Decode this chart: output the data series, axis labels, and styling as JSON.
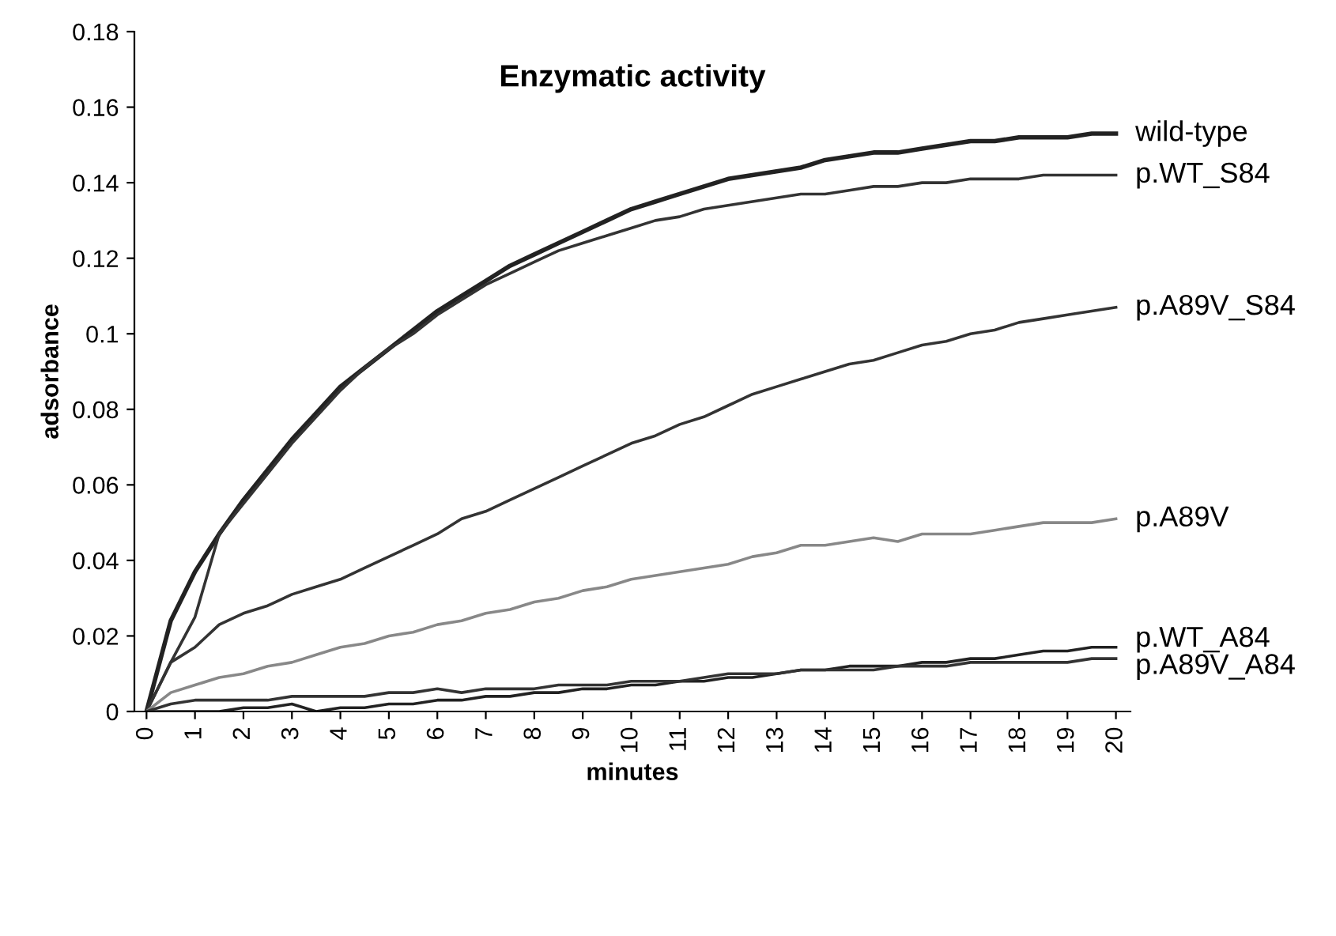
{
  "chart_data": {
    "type": "line",
    "title": "Enzymatic activity",
    "xlabel": "minutes",
    "ylabel": "adsorbance",
    "x": [
      0,
      0.5,
      1,
      1.5,
      2,
      2.5,
      3,
      3.5,
      4,
      4.5,
      5,
      5.5,
      6,
      6.5,
      7,
      7.5,
      8,
      8.5,
      9,
      9.5,
      10,
      10.5,
      11,
      11.5,
      12,
      12.5,
      13,
      13.5,
      14,
      14.5,
      15,
      15.5,
      16,
      16.5,
      17,
      17.5,
      18,
      18.5,
      19,
      19.5,
      20
    ],
    "series": [
      {
        "name": "wild-type",
        "color": "#222222",
        "values": [
          0,
          0.024,
          0.037,
          0.047,
          0.056,
          0.064,
          0.072,
          0.079,
          0.086,
          0.091,
          0.096,
          0.101,
          0.106,
          0.11,
          0.114,
          0.118,
          0.121,
          0.124,
          0.127,
          0.13,
          0.133,
          0.135,
          0.137,
          0.139,
          0.141,
          0.142,
          0.143,
          0.144,
          0.146,
          0.147,
          0.148,
          0.148,
          0.149,
          0.15,
          0.151,
          0.151,
          0.152,
          0.152,
          0.152,
          0.153,
          0.153
        ]
      },
      {
        "name": "p.WT_S84",
        "color": "#333333",
        "values": [
          0,
          0.013,
          0.025,
          0.047,
          0.055,
          0.063,
          0.071,
          0.078,
          0.085,
          0.091,
          0.096,
          0.1,
          0.105,
          0.109,
          0.113,
          0.116,
          0.119,
          0.122,
          0.124,
          0.126,
          0.128,
          0.13,
          0.131,
          0.133,
          0.134,
          0.135,
          0.136,
          0.137,
          0.137,
          0.138,
          0.139,
          0.139,
          0.14,
          0.14,
          0.141,
          0.141,
          0.141,
          0.142,
          0.142,
          0.142,
          0.142
        ]
      },
      {
        "name": "p.A89V_S84",
        "color": "#333333",
        "values": [
          0,
          0.013,
          0.017,
          0.023,
          0.026,
          0.028,
          0.031,
          0.033,
          0.035,
          0.038,
          0.041,
          0.044,
          0.047,
          0.051,
          0.053,
          0.056,
          0.059,
          0.062,
          0.065,
          0.068,
          0.071,
          0.073,
          0.076,
          0.078,
          0.081,
          0.084,
          0.086,
          0.088,
          0.09,
          0.092,
          0.093,
          0.095,
          0.097,
          0.098,
          0.1,
          0.101,
          0.103,
          0.104,
          0.105,
          0.106,
          0.107
        ]
      },
      {
        "name": "p.A89V",
        "color": "#888888",
        "values": [
          0,
          0.005,
          0.007,
          0.009,
          0.01,
          0.012,
          0.013,
          0.015,
          0.017,
          0.018,
          0.02,
          0.021,
          0.023,
          0.024,
          0.026,
          0.027,
          0.029,
          0.03,
          0.032,
          0.033,
          0.035,
          0.036,
          0.037,
          0.038,
          0.039,
          0.041,
          0.042,
          0.044,
          0.044,
          0.045,
          0.046,
          0.045,
          0.047,
          0.047,
          0.047,
          0.048,
          0.049,
          0.05,
          0.05,
          0.05,
          0.051
        ]
      },
      {
        "name": "p.WT_A84",
        "color": "#222222",
        "values": [
          0,
          0,
          0,
          0,
          0.001,
          0.001,
          0.002,
          0,
          0.001,
          0.001,
          0.002,
          0.002,
          0.003,
          0.003,
          0.004,
          0.004,
          0.005,
          0.005,
          0.006,
          0.006,
          0.007,
          0.007,
          0.008,
          0.008,
          0.009,
          0.009,
          0.01,
          0.011,
          0.011,
          0.012,
          0.012,
          0.012,
          0.013,
          0.013,
          0.014,
          0.014,
          0.015,
          0.016,
          0.016,
          0.017,
          0.017
        ]
      },
      {
        "name": "p.A89V_A84",
        "color": "#333333",
        "values": [
          0,
          0.002,
          0.003,
          0.003,
          0.003,
          0.003,
          0.004,
          0.004,
          0.004,
          0.004,
          0.005,
          0.005,
          0.006,
          0.005,
          0.006,
          0.006,
          0.006,
          0.007,
          0.007,
          0.007,
          0.008,
          0.008,
          0.008,
          0.009,
          0.01,
          0.01,
          0.01,
          0.011,
          0.011,
          0.011,
          0.011,
          0.012,
          0.012,
          0.012,
          0.013,
          0.013,
          0.013,
          0.013,
          0.013,
          0.014,
          0.014
        ]
      }
    ],
    "xlim": [
      -0.25,
      20.3
    ],
    "xticks": [
      0,
      1,
      2,
      3,
      4,
      5,
      6,
      7,
      8,
      9,
      10,
      11,
      12,
      13,
      14,
      15,
      16,
      17,
      18,
      19,
      20
    ],
    "ylim": [
      0,
      0.18
    ],
    "yticks": [
      0,
      0.02,
      0.04,
      0.06,
      0.08,
      0.1,
      0.12,
      0.14,
      0.16,
      0.18
    ],
    "grid": false,
    "legend": false,
    "marker": "none",
    "line_style": "solid"
  }
}
